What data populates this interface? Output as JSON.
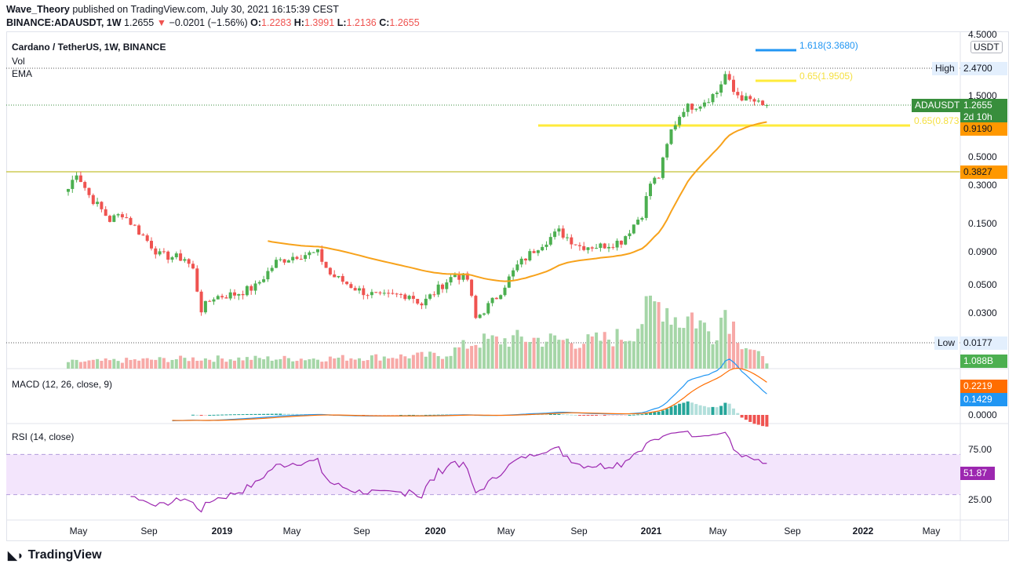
{
  "header": {
    "author": "Wave_Theory",
    "published": "published on TradingView.com, July 30, 2021 16:15:39 CEST",
    "symbol": "BINANCE:ADAUSDT, 1W",
    "last": "1.2655",
    "change": "−0.0201 (−1.56%)",
    "o_label": "O:",
    "o": "1.2283",
    "h_label": "H:",
    "h": "1.3991",
    "l_label": "L:",
    "l": "1.2136",
    "c_label": "C:",
    "c": "1.2655"
  },
  "legend": {
    "title": "Cardano / TetherUS, 1W, BINANCE",
    "vol": "Vol",
    "ema": "EMA",
    "macd": "MACD (12, 26, close, 9)",
    "rsi": "RSI (14, close)"
  },
  "axis": {
    "currency": "USDT",
    "price_ticks": [
      "4.5000",
      "1.5000",
      "0.5000",
      "0.3000",
      "0.1500",
      "0.0900",
      "0.0500",
      "0.0300"
    ],
    "macd_ticks": [
      "0.0000"
    ],
    "rsi_ticks": [
      "75.00",
      "25.00"
    ],
    "time_ticks": [
      "May",
      "Sep",
      "2019",
      "May",
      "Sep",
      "2020",
      "May",
      "Sep",
      "2021",
      "May",
      "Sep",
      "2022",
      "May"
    ]
  },
  "tags": {
    "high_label": "High",
    "high": "2.4700",
    "low_label": "Low",
    "low": "0.0177",
    "symbol": "ADAUSDT",
    "price": "1.2655",
    "countdown": "2d 10h",
    "ema": "0.9190",
    "level": "0.3827",
    "volume": "1.088B",
    "macd_signal": "0.2219",
    "macd": "0.1429",
    "rsi": "51.87"
  },
  "fib": {
    "ext": "1.618(3.3680)",
    "upper": "0.65(1.9505)",
    "lower": "0.65(0.873"
  },
  "colors": {
    "up": "#4caf50",
    "down": "#ef5350",
    "ema": "#f7a21b",
    "fib_blue": "#2196f3",
    "fib_yellow": "#ffeb3b",
    "rsi": "#9c27b0",
    "level": "#b5b200"
  },
  "chart_data": {
    "type": "candlestick",
    "interval": "1W",
    "scale": "log",
    "close_keypoints": [
      [
        0,
        0.28
      ],
      [
        2,
        0.38
      ],
      [
        5,
        0.25
      ],
      [
        10,
        0.16
      ],
      [
        13,
        0.18
      ],
      [
        18,
        0.12
      ],
      [
        22,
        0.085
      ],
      [
        28,
        0.08
      ],
      [
        30,
        0.065
      ],
      [
        32,
        0.032
      ],
      [
        35,
        0.04
      ],
      [
        40,
        0.042
      ],
      [
        45,
        0.048
      ],
      [
        50,
        0.075
      ],
      [
        55,
        0.085
      ],
      [
        60,
        0.088
      ],
      [
        63,
        0.06
      ],
      [
        70,
        0.045
      ],
      [
        75,
        0.04
      ],
      [
        82,
        0.042
      ],
      [
        85,
        0.035
      ],
      [
        90,
        0.05
      ],
      [
        93,
        0.06
      ],
      [
        96,
        0.055
      ],
      [
        98,
        0.027
      ],
      [
        103,
        0.04
      ],
      [
        108,
        0.07
      ],
      [
        113,
        0.1
      ],
      [
        118,
        0.13
      ],
      [
        123,
        0.1
      ],
      [
        128,
        0.1
      ],
      [
        133,
        0.11
      ],
      [
        138,
        0.18
      ],
      [
        140,
        0.31
      ],
      [
        142,
        0.35
      ],
      [
        145,
        0.8
      ],
      [
        148,
        1.2
      ],
      [
        152,
        1.3
      ],
      [
        156,
        1.6
      ],
      [
        158,
        2.2
      ],
      [
        160,
        1.6
      ],
      [
        163,
        1.4
      ],
      [
        165,
        1.35
      ],
      [
        167,
        1.23
      ],
      [
        168,
        1.2655
      ]
    ],
    "volume_keypoints": [
      [
        0,
        0.1
      ],
      [
        30,
        0.15
      ],
      [
        60,
        0.15
      ],
      [
        90,
        0.2
      ],
      [
        98,
        0.4
      ],
      [
        110,
        0.45
      ],
      [
        125,
        0.4
      ],
      [
        135,
        0.5
      ],
      [
        140,
        0.9
      ],
      [
        143,
        1.0
      ],
      [
        147,
        0.7
      ],
      [
        150,
        0.8
      ],
      [
        155,
        0.5
      ],
      [
        158,
        0.9
      ],
      [
        162,
        0.4
      ],
      [
        168,
        0.1
      ]
    ],
    "ema_period": 50,
    "macd": [
      12,
      26,
      9
    ],
    "rsi_period": 14
  }
}
